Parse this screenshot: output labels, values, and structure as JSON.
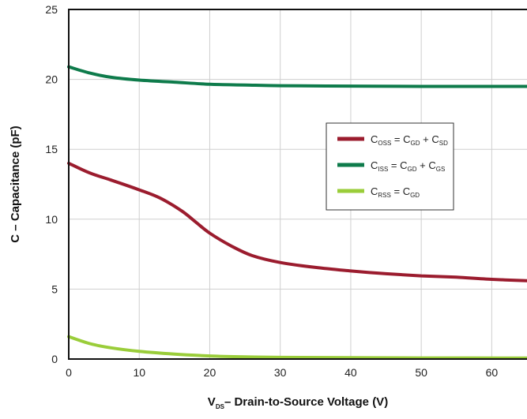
{
  "chart_data": {
    "type": "line",
    "xlabel": {
      "main": "V",
      "sub": "DS",
      "rest": "– Drain-to-Source Voltage (V)"
    },
    "ylabel": "C – Capacitance (pF)",
    "xlim": [
      0,
      65
    ],
    "ylim": [
      0,
      25
    ],
    "xticks": [
      "0",
      "10",
      "20",
      "30",
      "40",
      "50",
      "60"
    ],
    "yticks": [
      "0",
      "5",
      "10",
      "15",
      "20",
      "25"
    ],
    "grid": true,
    "legend_position": "right-middle",
    "series": [
      {
        "name": "COSS = CGD + CSD",
        "legend_parts": [
          {
            "base": "C",
            "sub": "OSS"
          },
          {
            "op": "= "
          },
          {
            "base": "C",
            "sub": "GD"
          },
          {
            "op": "+ "
          },
          {
            "base": "C",
            "sub": "SD"
          }
        ],
        "color": "#9b1c2e",
        "x": [
          0,
          3,
          6,
          10,
          13,
          16,
          18,
          20,
          23,
          26,
          30,
          35,
          40,
          45,
          50,
          55,
          60,
          65
        ],
        "y": [
          14.0,
          13.3,
          12.8,
          12.1,
          11.5,
          10.6,
          9.8,
          9.0,
          8.1,
          7.4,
          6.9,
          6.55,
          6.3,
          6.1,
          5.95,
          5.85,
          5.7,
          5.6
        ]
      },
      {
        "name": "CISS = CGD + CGS",
        "legend_parts": [
          {
            "base": "C",
            "sub": "ISS"
          },
          {
            "op": "= "
          },
          {
            "base": "C",
            "sub": "GD"
          },
          {
            "op": "+ "
          },
          {
            "base": "C",
            "sub": "GS"
          }
        ],
        "color": "#0e7b4b",
        "x": [
          0,
          3,
          6,
          10,
          15,
          20,
          25,
          30,
          40,
          50,
          65
        ],
        "y": [
          20.9,
          20.45,
          20.15,
          19.95,
          19.8,
          19.65,
          19.6,
          19.55,
          19.52,
          19.5,
          19.5
        ]
      },
      {
        "name": "CRSS = CGD",
        "legend_parts": [
          {
            "base": "C",
            "sub": "RSS"
          },
          {
            "op": "= "
          },
          {
            "base": "C",
            "sub": "GD"
          }
        ],
        "color": "#9acd3a",
        "x": [
          0,
          3,
          6,
          10,
          15,
          20,
          25,
          30,
          40,
          50,
          65
        ],
        "y": [
          1.6,
          1.1,
          0.8,
          0.55,
          0.35,
          0.22,
          0.15,
          0.12,
          0.1,
          0.08,
          0.07
        ]
      }
    ]
  }
}
